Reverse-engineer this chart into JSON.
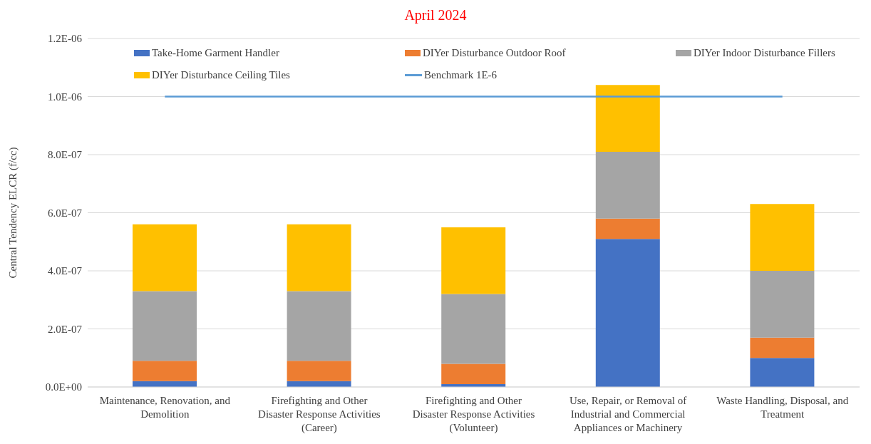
{
  "chart_data": {
    "type": "bar",
    "stacked": true,
    "annotations": [
      "April 2024"
    ],
    "ylabel": "Central Tendency ELCR (f/cc)",
    "categories": [
      "Maintenance, Renovation, and Demolition",
      "Firefighting and Other Disaster Response Activities (Career)",
      "Firefighting and Other Disaster Response Activities (Volunteer)",
      "Use, Repair, or Removal of Industrial and Commercial Appliances or Machinery",
      "Waste Handling, Disposal, and Treatment"
    ],
    "series": [
      {
        "name": "Take-Home Garment Handler",
        "color": "#4472c4",
        "values": [
          2e-08,
          2e-08,
          1e-08,
          5.1e-07,
          1e-07
        ]
      },
      {
        "name": "DIYer Disturbance Outdoor Roof",
        "color": "#ed7d31",
        "values": [
          7e-08,
          7e-08,
          7e-08,
          7e-08,
          7e-08
        ]
      },
      {
        "name": "DIYer Indoor Disturbance Fillers",
        "color": "#a5a5a5",
        "values": [
          2.4e-07,
          2.4e-07,
          2.4e-07,
          2.3e-07,
          2.3e-07
        ]
      },
      {
        "name": "DIYer Disturbance Ceiling Tiles",
        "color": "#ffc000",
        "values": [
          2.3e-07,
          2.3e-07,
          2.3e-07,
          2.3e-07,
          2.3e-07
        ]
      },
      {
        "name": "Benchmark 1E-6",
        "type": "line",
        "color": "#5b9bd5",
        "values": [
          1e-06,
          1e-06,
          1e-06,
          1e-06,
          1e-06
        ]
      }
    ],
    "ylim": [
      0,
      1.2e-06
    ],
    "yticks": [
      {
        "value": 0,
        "label": "0.0E+00"
      },
      {
        "value": 2e-07,
        "label": "2.0E-07"
      },
      {
        "value": 4e-07,
        "label": "4.0E-07"
      },
      {
        "value": 6e-07,
        "label": "6.0E-07"
      },
      {
        "value": 8e-07,
        "label": "8.0E-07"
      },
      {
        "value": 1e-06,
        "label": "1.0E-06"
      },
      {
        "value": 1.2e-06,
        "label": "1.2E-06"
      }
    ],
    "grid": "y",
    "legend": "top",
    "marker": "none"
  }
}
